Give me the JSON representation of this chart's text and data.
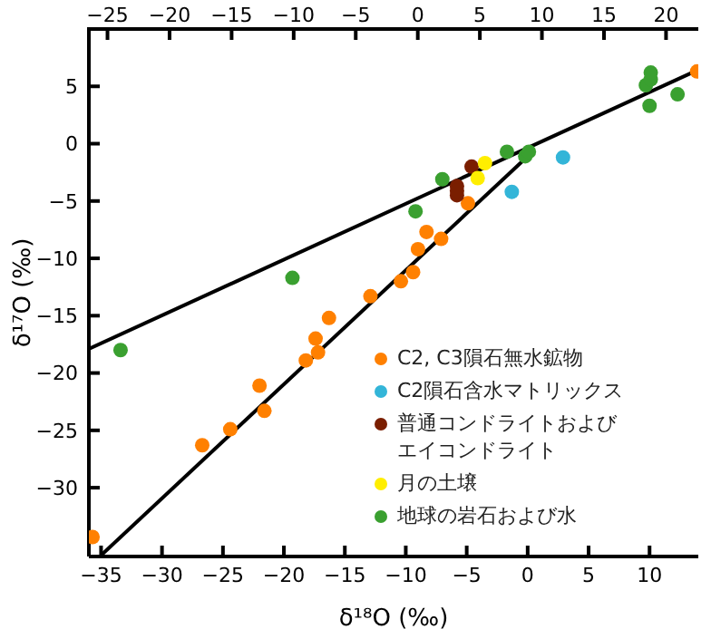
{
  "chart_data": {
    "type": "scatter",
    "xlabel": "δ¹⁸O (‰)",
    "ylabel": "δ¹⁷O (‰)",
    "xlim": [
      -36,
      14
    ],
    "xticks": [
      -35,
      -30,
      -25,
      -20,
      -15,
      -10,
      -5,
      0,
      5,
      10
    ],
    "x2lim": [
      -26.5,
      22.6
    ],
    "x2ticks": [
      -25,
      -20,
      -15,
      -10,
      -5,
      0,
      5,
      10,
      15,
      20
    ],
    "ylim": [
      -36,
      10
    ],
    "yticks": [
      -30,
      -25,
      -20,
      -15,
      -10,
      -5,
      0,
      5
    ],
    "grid": false,
    "legend": "bottom right",
    "marker": "circle",
    "series": [
      {
        "name": "C2, C3隕石無水鉱物",
        "color": "#ff8000",
        "x": [
          13.9,
          -4.9,
          -8.3,
          -7.1,
          -9.0,
          -9.4,
          -10.4,
          -12.9,
          -16.3,
          -17.4,
          -17.2,
          -18.2,
          -22.0,
          -21.6,
          -24.4,
          -26.7,
          -35.7
        ],
        "values": [
          6.3,
          -5.2,
          -7.7,
          -8.3,
          -9.2,
          -11.2,
          -12.0,
          -13.3,
          -15.2,
          -17.0,
          -18.2,
          -18.9,
          -21.1,
          -23.3,
          -24.9,
          -26.3,
          -34.3
        ]
      },
      {
        "name": "C2隕石含水マトリックス",
        "color": "#33b5d8",
        "x": [
          2.9,
          -1.3
        ],
        "values": [
          -1.2,
          -4.2
        ]
      },
      {
        "name": "普通コンドライトおよびエイコンドライト",
        "color": "#7a1e00",
        "x": [
          -4.6,
          -5.8,
          -5.8,
          -5.8
        ],
        "values": [
          -2.0,
          -3.7,
          -4.5,
          -4.1
        ]
      },
      {
        "name": "月の土壌",
        "color": "#ffee00",
        "x": [
          -3.5,
          -4.1
        ],
        "values": [
          -1.7,
          -3.0
        ]
      },
      {
        "name": "地球の岩石および水",
        "color": "#3aa030",
        "x": [
          -33.4,
          -19.3,
          -9.2,
          -7.0,
          -1.7,
          -0.2,
          0.1,
          10.0,
          9.7,
          10.1,
          10.1,
          12.3
        ],
        "values": [
          -18.0,
          -11.7,
          -5.9,
          -3.1,
          -0.7,
          -1.1,
          -0.7,
          3.3,
          5.1,
          5.6,
          6.2,
          4.3
        ]
      },
      {
        "type": "line",
        "color": "#000000",
        "marker": "none",
        "x": [
          -36,
          13.9
        ],
        "values": [
          -17.9,
          6.4
        ]
      },
      {
        "type": "line",
        "color": "#000000",
        "marker": "none",
        "x": [
          -35,
          -0.2
        ],
        "values": [
          -35.9,
          -1.3
        ]
      }
    ]
  }
}
